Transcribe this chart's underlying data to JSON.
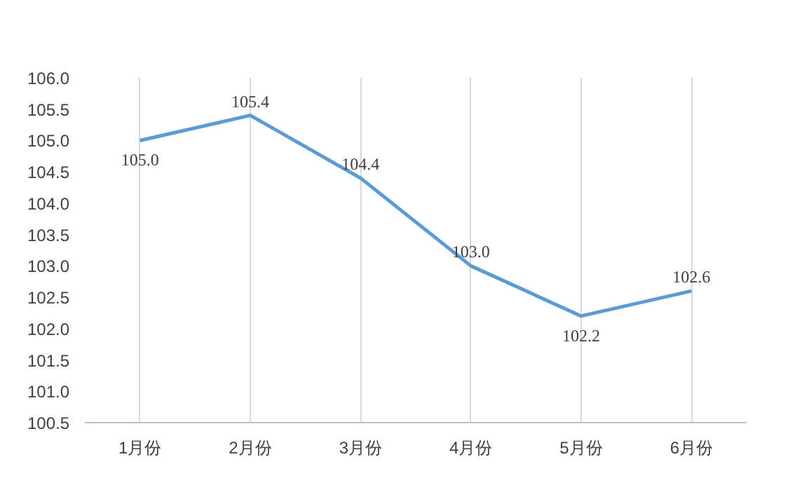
{
  "chart_data": {
    "type": "line",
    "categories": [
      "1月份",
      "2月份",
      "3月份",
      "4月份",
      "5月份",
      "6月份"
    ],
    "series": [
      {
        "color": "#5b9bd5",
        "values": [
          105.0,
          105.4,
          104.4,
          103.0,
          102.2,
          102.6
        ],
        "value_labels": [
          "105.0",
          "105.4",
          "104.4",
          "103.0",
          "102.2",
          "102.6"
        ]
      }
    ],
    "ylim": [
      100.5,
      106.0
    ],
    "yticks": [
      {
        "value": 100.5,
        "label": "100.5"
      },
      {
        "value": 101,
        "label": "101.0"
      },
      {
        "value": 101.5,
        "label": "101.5"
      },
      {
        "value": 102,
        "label": "102.0"
      },
      {
        "value": 102.5,
        "label": "102.5"
      },
      {
        "value": 103,
        "label": "103.0"
      },
      {
        "value": 103.5,
        "label": "103.5"
      },
      {
        "value": 104,
        "label": "104.0"
      },
      {
        "value": 104.5,
        "label": "104.5"
      },
      {
        "value": 105,
        "label": "105.0"
      },
      {
        "value": 105.5,
        "label": "105.5"
      },
      {
        "value": 106,
        "label": "106.0"
      }
    ],
    "grid": "x",
    "marker": "none",
    "line_style": "solid"
  }
}
